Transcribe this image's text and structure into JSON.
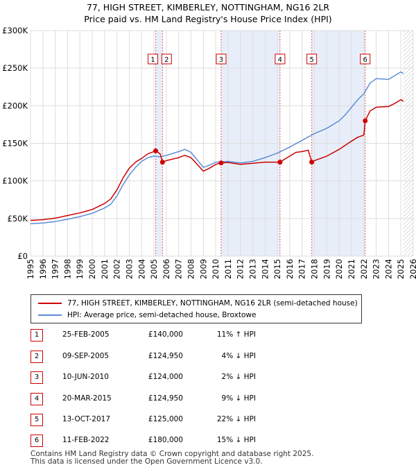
{
  "title_line1": "77, HIGH STREET, KIMBERLEY, NOTTINGHAM, NG16 2LR",
  "title_line2": "Price paid vs. HM Land Registry's House Price Index (HPI)",
  "chart_data": {
    "type": "line",
    "title": "77, HIGH STREET, KIMBERLEY, NOTTINGHAM, NG16 2LR — Price paid vs. HM Land Registry's House Price Index (HPI)",
    "xlim": [
      1995,
      2026
    ],
    "ylim": [
      0,
      300000
    ],
    "y_ticks": [
      0,
      50000,
      100000,
      150000,
      200000,
      250000,
      300000
    ],
    "y_tick_labels": [
      "£0",
      "£50K",
      "£100K",
      "£150K",
      "£200K",
      "£250K",
      "£300K"
    ],
    "x_ticks": [
      1995,
      1996,
      1997,
      1998,
      1999,
      2000,
      2001,
      2002,
      2003,
      2004,
      2005,
      2006,
      2007,
      2008,
      2009,
      2010,
      2011,
      2012,
      2013,
      2014,
      2015,
      2016,
      2017,
      2018,
      2019,
      2020,
      2021,
      2022,
      2023,
      2024,
      2025,
      2026
    ],
    "colors": {
      "property": "#cc0000",
      "hpi": "#5b8ed6",
      "band": "#e8eef9",
      "vline": "#e06060"
    },
    "series": [
      {
        "name": "77, HIGH STREET, KIMBERLEY, NOTTINGHAM, NG16 2LR (semi-detached house)",
        "points": [
          [
            1995.0,
            47500
          ],
          [
            1996.0,
            48500
          ],
          [
            1997.0,
            50500
          ],
          [
            1998.0,
            54000
          ],
          [
            1999.0,
            57500
          ],
          [
            2000.0,
            62000
          ],
          [
            2001.0,
            70000
          ],
          [
            2001.5,
            76000
          ],
          [
            2002.0,
            88000
          ],
          [
            2002.5,
            104000
          ],
          [
            2003.0,
            117000
          ],
          [
            2003.5,
            125000
          ],
          [
            2004.0,
            130000
          ],
          [
            2004.5,
            136000
          ],
          [
            2005.14,
            140000
          ],
          [
            2005.5,
            136000
          ],
          [
            2005.69,
            124950
          ],
          [
            2006.0,
            127000
          ],
          [
            2007.0,
            131000
          ],
          [
            2007.5,
            134000
          ],
          [
            2008.0,
            131000
          ],
          [
            2008.5,
            122000
          ],
          [
            2009.0,
            113000
          ],
          [
            2009.5,
            117000
          ],
          [
            2010.0,
            122000
          ],
          [
            2010.44,
            124000
          ],
          [
            2011.0,
            124500
          ],
          [
            2012.0,
            122000
          ],
          [
            2013.0,
            123500
          ],
          [
            2014.0,
            125000
          ],
          [
            2015.21,
            124950
          ],
          [
            2015.5,
            128000
          ],
          [
            2016.0,
            133000
          ],
          [
            2016.5,
            138000
          ],
          [
            2017.0,
            139000
          ],
          [
            2017.5,
            141000
          ],
          [
            2017.78,
            125000
          ],
          [
            2018.0,
            127000
          ],
          [
            2019.0,
            133000
          ],
          [
            2020.0,
            142000
          ],
          [
            2021.0,
            153000
          ],
          [
            2021.5,
            158000
          ],
          [
            2022.0,
            161000
          ],
          [
            2022.11,
            180000
          ],
          [
            2022.5,
            193000
          ],
          [
            2023.0,
            198000
          ],
          [
            2024.0,
            199000
          ],
          [
            2024.5,
            203000
          ],
          [
            2025.0,
            208000
          ],
          [
            2025.2,
            206000
          ]
        ],
        "sales": [
          {
            "label": "1",
            "x": 2005.14,
            "value": 140000
          },
          {
            "label": "2",
            "x": 2005.69,
            "value": 124950
          },
          {
            "label": "3",
            "x": 2010.44,
            "value": 124000
          },
          {
            "label": "4",
            "x": 2015.21,
            "value": 124950
          },
          {
            "label": "5",
            "x": 2017.78,
            "value": 125000
          },
          {
            "label": "6",
            "x": 2022.11,
            "value": 180000
          }
        ]
      },
      {
        "name": "HPI: Average price, semi-detached house, Broxtowe",
        "points": [
          [
            1995.0,
            43000
          ],
          [
            1996.0,
            44000
          ],
          [
            1997.0,
            46000
          ],
          [
            1998.0,
            49000
          ],
          [
            1999.0,
            52500
          ],
          [
            2000.0,
            57000
          ],
          [
            2001.0,
            64000
          ],
          [
            2001.5,
            69000
          ],
          [
            2002.0,
            80000
          ],
          [
            2002.5,
            95000
          ],
          [
            2003.0,
            108000
          ],
          [
            2003.5,
            118000
          ],
          [
            2004.0,
            126000
          ],
          [
            2004.5,
            131000
          ],
          [
            2005.0,
            133000
          ],
          [
            2005.5,
            132000
          ],
          [
            2006.0,
            134000
          ],
          [
            2007.0,
            139000
          ],
          [
            2007.5,
            142000
          ],
          [
            2008.0,
            138000
          ],
          [
            2008.5,
            128000
          ],
          [
            2009.0,
            118000
          ],
          [
            2009.5,
            121000
          ],
          [
            2010.0,
            125000
          ],
          [
            2011.0,
            126000
          ],
          [
            2012.0,
            124000
          ],
          [
            2013.0,
            126000
          ],
          [
            2014.0,
            131000
          ],
          [
            2015.0,
            137000
          ],
          [
            2016.0,
            145000
          ],
          [
            2017.0,
            154000
          ],
          [
            2018.0,
            163000
          ],
          [
            2019.0,
            170000
          ],
          [
            2020.0,
            180000
          ],
          [
            2020.5,
            188000
          ],
          [
            2021.0,
            198000
          ],
          [
            2021.5,
            208000
          ],
          [
            2022.0,
            216000
          ],
          [
            2022.5,
            230000
          ],
          [
            2023.0,
            236000
          ],
          [
            2024.0,
            235000
          ],
          [
            2024.5,
            240000
          ],
          [
            2025.0,
            245000
          ],
          [
            2025.2,
            243000
          ]
        ]
      }
    ],
    "bands": [
      [
        2005.14,
        2005.69
      ],
      [
        2010.44,
        2015.21
      ],
      [
        2017.78,
        2022.11
      ]
    ],
    "hatch_from": 2025.2
  },
  "legend": {
    "property": "77, HIGH STREET, KIMBERLEY, NOTTINGHAM, NG16 2LR (semi-detached house)",
    "hpi": "HPI: Average price, semi-detached house, Broxtowe"
  },
  "transactions": [
    {
      "num": "1",
      "date": "25-FEB-2005",
      "price": "£140,000",
      "hpi": "11% ↑ HPI"
    },
    {
      "num": "2",
      "date": "09-SEP-2005",
      "price": "£124,950",
      "hpi": "4% ↓ HPI"
    },
    {
      "num": "3",
      "date": "10-JUN-2010",
      "price": "£124,000",
      "hpi": "2% ↓ HPI"
    },
    {
      "num": "4",
      "date": "20-MAR-2015",
      "price": "£124,950",
      "hpi": "9% ↓ HPI"
    },
    {
      "num": "5",
      "date": "13-OCT-2017",
      "price": "£125,000",
      "hpi": "22% ↓ HPI"
    },
    {
      "num": "6",
      "date": "11-FEB-2022",
      "price": "£180,000",
      "hpi": "15% ↓ HPI"
    }
  ],
  "footer": {
    "line1": "Contains HM Land Registry data © Crown copyright and database right 2025.",
    "line2": "This data is licensed under the Open Government Licence v3.0."
  }
}
